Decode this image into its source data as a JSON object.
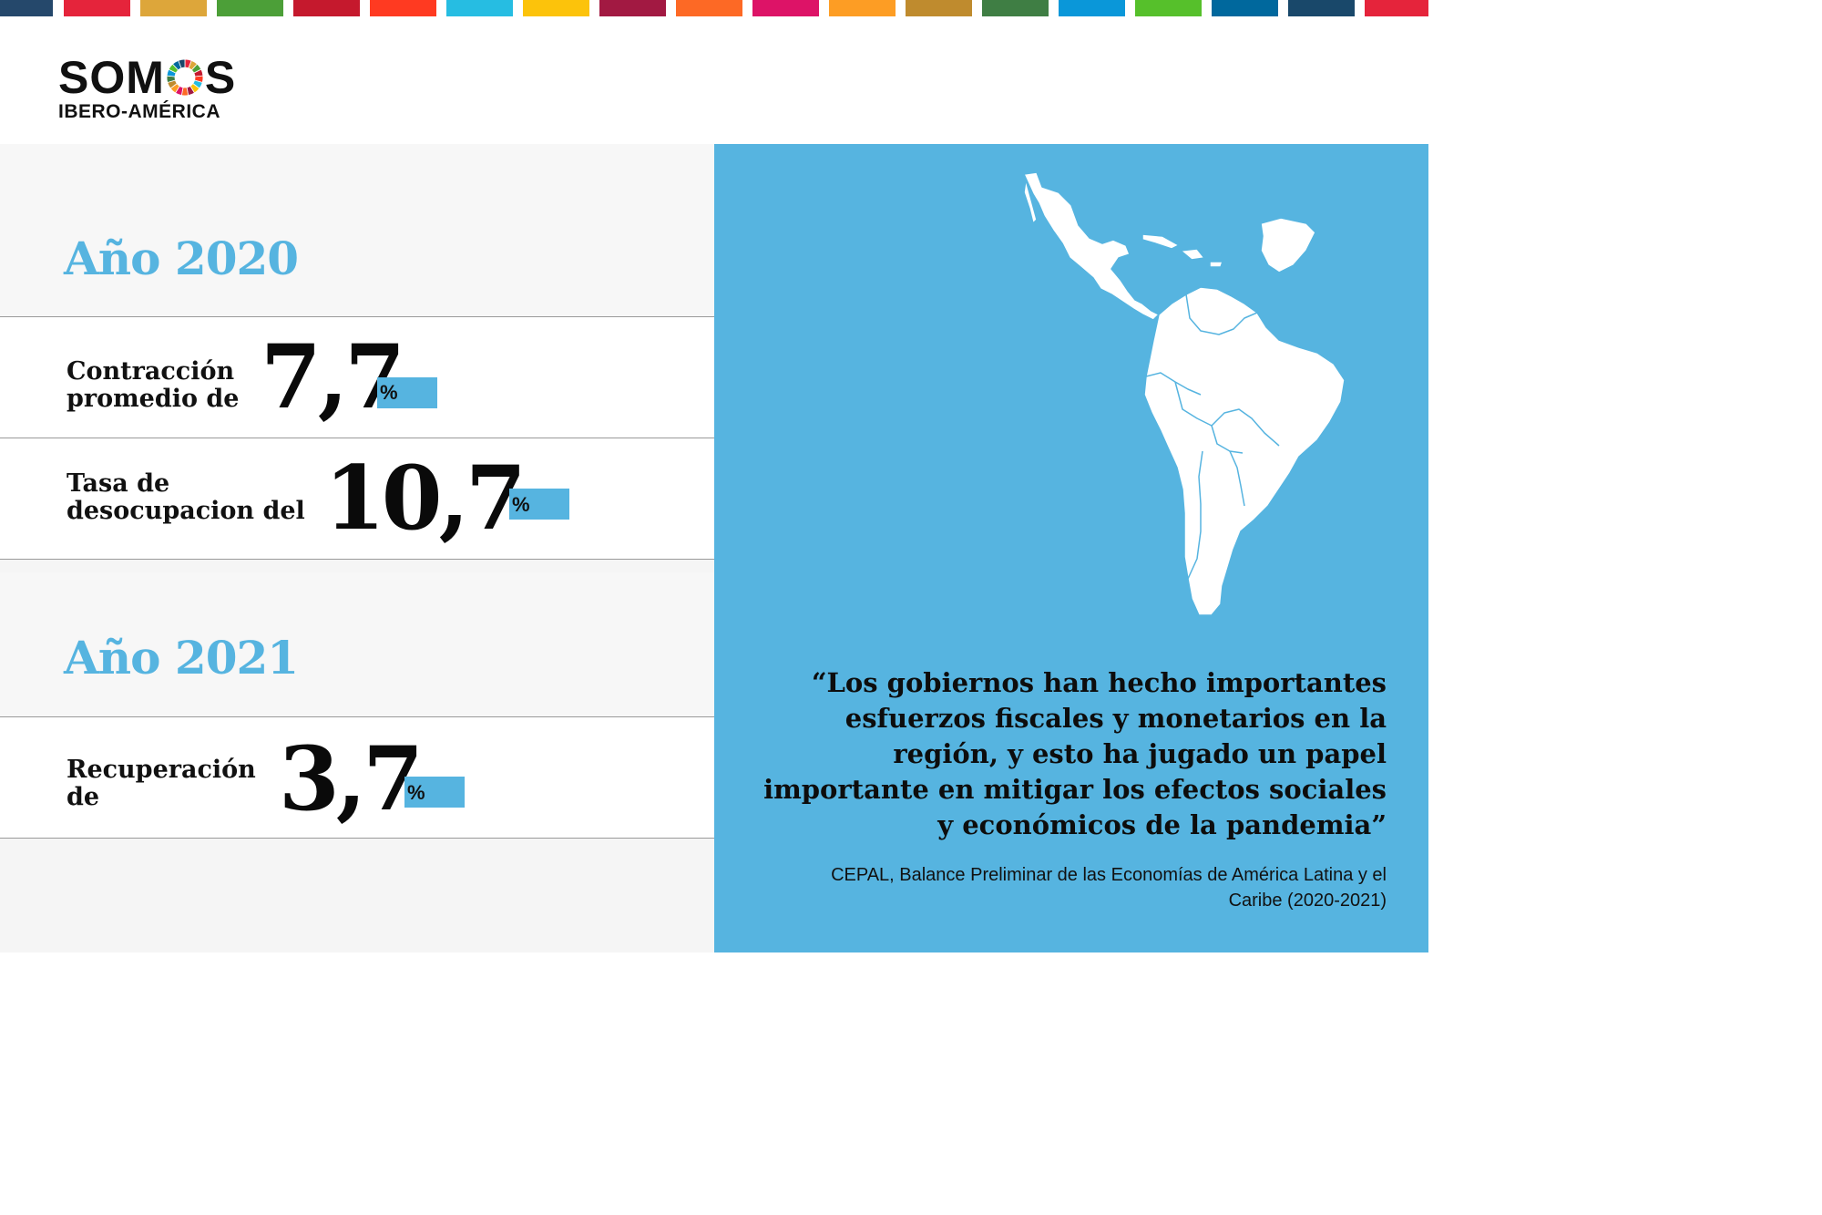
{
  "strip_colors": [
    "#25486b",
    "#e5243b",
    "#dda63a",
    "#4c9f38",
    "#c5192d",
    "#ff3a21",
    "#26bde2",
    "#fcc30b",
    "#a21942",
    "#fd6925",
    "#dd1367",
    "#fd9d24",
    "#bf8b2e",
    "#3f7e44",
    "#0a97d9",
    "#56c02b",
    "#00689d",
    "#19486a",
    "#e5243b"
  ],
  "logo": {
    "word_left": "SOM",
    "word_right": "S",
    "subtitle": "IBERO-AMÉRICA"
  },
  "sections": [
    {
      "year": "Año 2020",
      "stats": [
        {
          "label": "Contracción\npromedio de",
          "value": "7,7",
          "unit": "%"
        },
        {
          "label": "Tasa de\ndesocupacion del",
          "value": "10,7",
          "unit": "%"
        }
      ]
    },
    {
      "year": "Año 2021",
      "stats": [
        {
          "label": "Recuperación\nde",
          "value": "3,7",
          "unit": "%"
        }
      ]
    }
  ],
  "quote": "“Los gobiernos han hecho importantes esfuerzos fiscales y monetarios en la región, y esto ha jugado un papel importante en mitigar los efectos sociales y económicos de la pandemia”",
  "source": "CEPAL, Balance Preliminar de las Economías de América Latina y el Caribe (2020-2021)",
  "colors": {
    "accent": "#56b4e0",
    "text": "#111111"
  },
  "icons": {
    "logo_wheel": "sdg-wheel-icon",
    "map": "latin-america-map-icon"
  }
}
